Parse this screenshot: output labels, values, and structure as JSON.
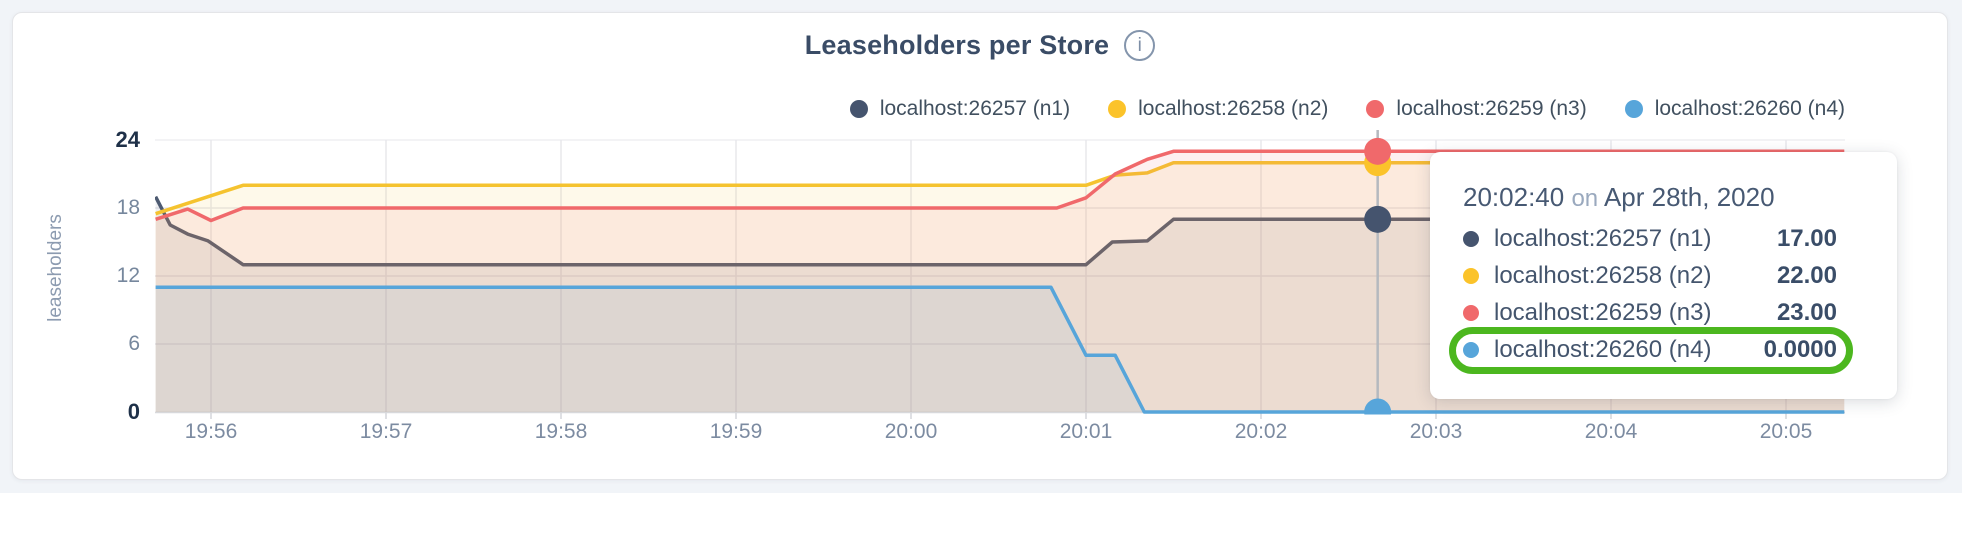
{
  "page": {
    "background_color": "#f1f4f8"
  },
  "card": {
    "title": "Leaseholders per Store",
    "info_icon_glyph": "i"
  },
  "legend": {
    "items": [
      {
        "label": "localhost:26257 (n1)",
        "color": "#45546E"
      },
      {
        "label": "localhost:26258 (n2)",
        "color": "#FBC32A"
      },
      {
        "label": "localhost:26259 (n3)",
        "color": "#F0696B"
      },
      {
        "label": "localhost:26260 (n4)",
        "color": "#57A5DA"
      }
    ]
  },
  "chart_data": {
    "type": "area",
    "title": "Leaseholders per Store",
    "ylabel": "leaseholders",
    "ylim": [
      0,
      24
    ],
    "grid": true,
    "legend_position": "top-right",
    "time_reference": "t_sec is seconds after 19:56:00 on Apr 28th, 2020",
    "yticks": [
      {
        "label": "24",
        "value": 24,
        "bold": true
      },
      {
        "label": "18",
        "value": 18,
        "bold": false
      },
      {
        "label": "12",
        "value": 12,
        "bold": false
      },
      {
        "label": "6",
        "value": 6,
        "bold": false
      },
      {
        "label": "0",
        "value": 0,
        "bold": true
      }
    ],
    "xticks": [
      {
        "label": "19:56",
        "t_sec": 0
      },
      {
        "label": "19:57",
        "t_sec": 60
      },
      {
        "label": "19:58",
        "t_sec": 120
      },
      {
        "label": "19:59",
        "t_sec": 180
      },
      {
        "label": "20:00",
        "t_sec": 240
      },
      {
        "label": "20:01",
        "t_sec": 300
      },
      {
        "label": "20:02",
        "t_sec": 360
      },
      {
        "label": "20:03",
        "t_sec": 420
      },
      {
        "label": "20:04",
        "t_sec": 480
      },
      {
        "label": "20:05",
        "t_sec": 540
      }
    ],
    "x_domain_sec": [
      -19,
      560
    ],
    "series": [
      {
        "name": "localhost:26257 (n1)",
        "color": "#4D5A71",
        "fill_opacity": 0.1,
        "points_t_sec_value": [
          [
            -19,
            19
          ],
          [
            -14,
            16.5
          ],
          [
            -8,
            15.7
          ],
          [
            -1,
            15.1
          ],
          [
            11,
            13
          ],
          [
            300,
            13
          ],
          [
            309,
            15
          ],
          [
            321,
            15.1
          ],
          [
            330,
            17
          ],
          [
            560,
            17
          ]
        ]
      },
      {
        "name": "localhost:26258 (n2)",
        "color": "#F5C32F",
        "fill_opacity": 0.1,
        "points_t_sec_value": [
          [
            -19,
            17.5
          ],
          [
            11,
            20
          ],
          [
            300,
            20
          ],
          [
            310,
            20.9
          ],
          [
            321,
            21.1
          ],
          [
            330,
            22
          ],
          [
            560,
            22
          ]
        ]
      },
      {
        "name": "localhost:26259 (n3)",
        "color": "#F0696B",
        "fill_opacity": 0.1,
        "points_t_sec_value": [
          [
            -19,
            17
          ],
          [
            -8,
            17.9
          ],
          [
            0,
            16.9
          ],
          [
            11,
            18
          ],
          [
            290,
            18
          ],
          [
            300,
            18.9
          ],
          [
            310,
            21
          ],
          [
            321,
            22.3
          ],
          [
            330,
            23
          ],
          [
            560,
            23
          ]
        ]
      },
      {
        "name": "localhost:26260 (n4)",
        "color": "#57A5DA",
        "fill_opacity": 0.1,
        "points_t_sec_value": [
          [
            -19,
            11
          ],
          [
            288,
            11
          ],
          [
            300,
            5
          ],
          [
            310,
            5
          ],
          [
            320,
            0
          ],
          [
            560,
            0
          ]
        ]
      }
    ],
    "hover": {
      "t_sec": 400,
      "time_label": "20:02:40",
      "values": [
        17,
        22,
        23,
        0
      ]
    }
  },
  "tooltip": {
    "time": "20:02:40",
    "conjunction": "on",
    "date": "Apr 28th, 2020",
    "rows": [
      {
        "label": "localhost:26257 (n1)",
        "value": "17.00",
        "color": "#45546E"
      },
      {
        "label": "localhost:26258 (n2)",
        "value": "22.00",
        "color": "#FBC32A"
      },
      {
        "label": "localhost:26259 (n3)",
        "value": "23.00",
        "color": "#F0696B"
      },
      {
        "label": "localhost:26260 (n4)",
        "value": "0.0000",
        "color": "#57A5DA"
      }
    ],
    "highlighted_row_index": 3,
    "highlight_color": "#4CB71F"
  }
}
